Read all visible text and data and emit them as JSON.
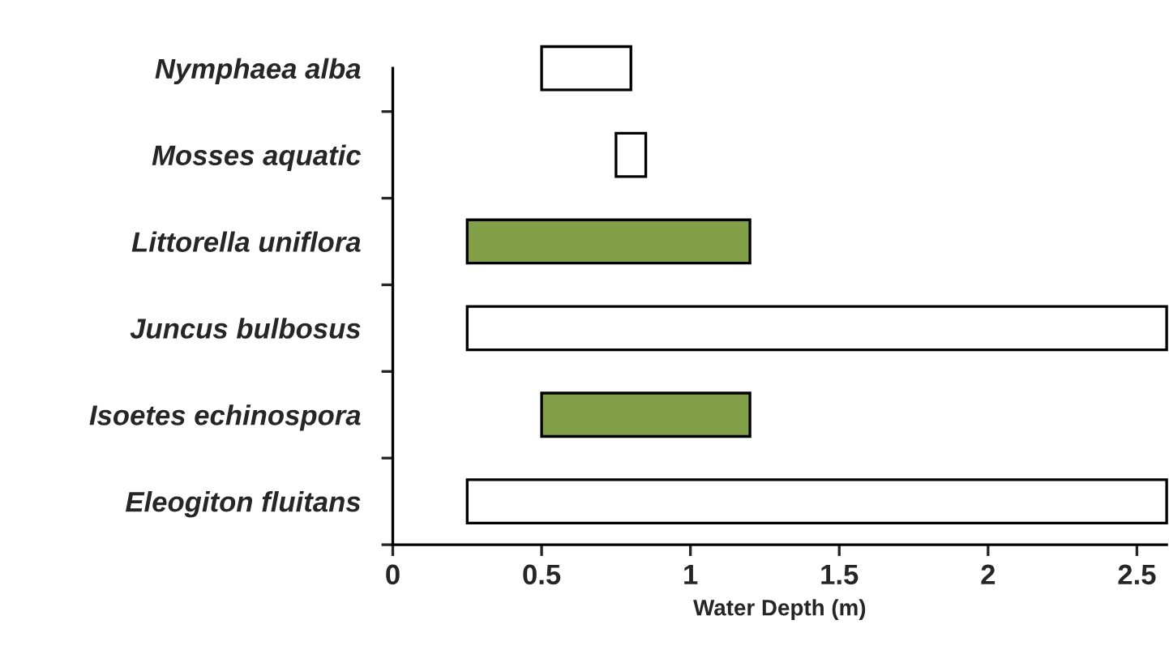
{
  "chart_data": {
    "type": "bar",
    "orientation": "horizontal",
    "xlabel": "Water Depth (m)",
    "categories": [
      "Nymphaea alba",
      "Mosses aquatic",
      "Littorella uniflora",
      "Juncus bulbosus",
      "Isoetes echinospora",
      "Eleogiton fluitans"
    ],
    "base": [
      0.5,
      0.75,
      0.25,
      0.25,
      0.5,
      0.25
    ],
    "values": [
      0.3,
      0.1,
      0.95,
      2.35,
      0.7,
      2.35
    ],
    "colors": [
      "#ffffff",
      "#ffffff",
      "#82a047",
      "#ffffff",
      "#82a047",
      "#ffffff"
    ],
    "xlim": [
      0,
      2.6
    ],
    "xticks": [
      0,
      0.5,
      1,
      1.5,
      2,
      2.5
    ]
  }
}
